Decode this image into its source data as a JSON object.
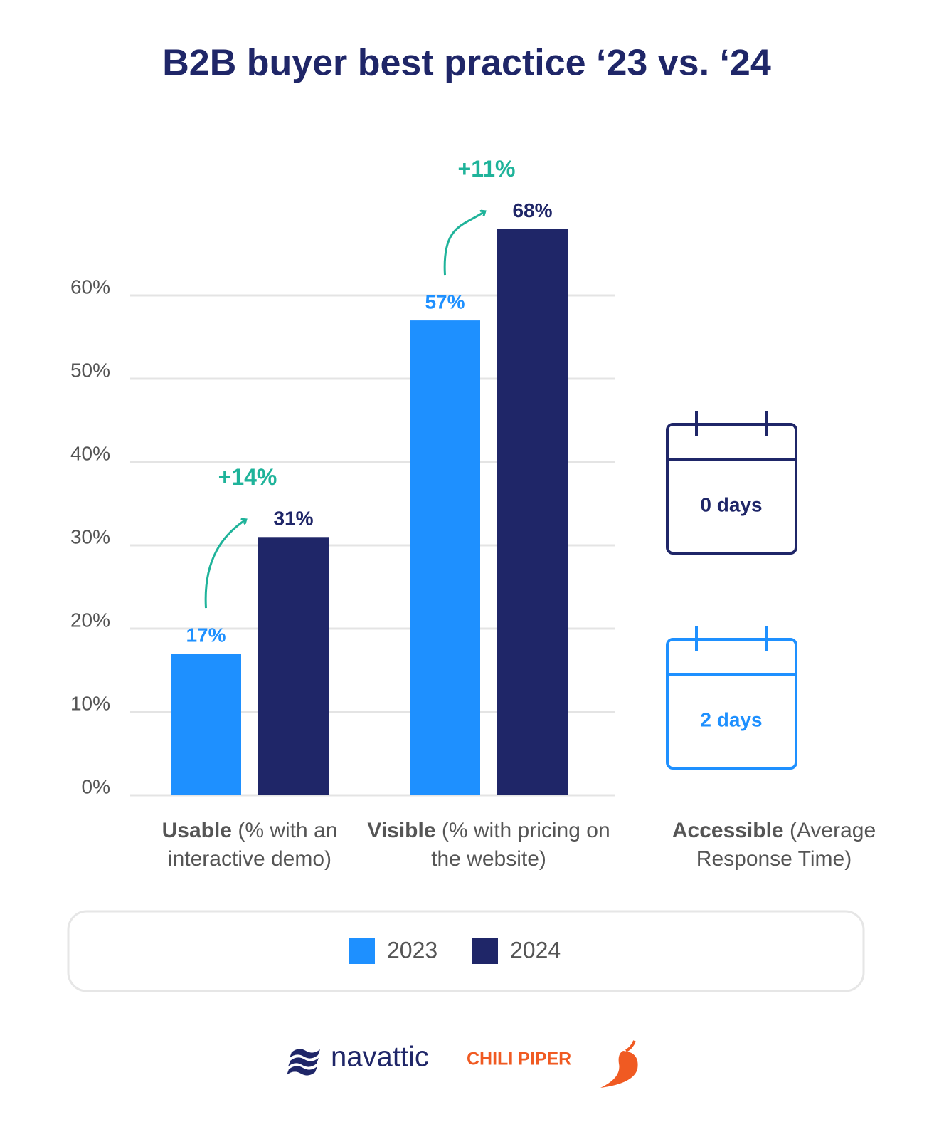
{
  "chart_data": {
    "type": "bar",
    "title": "B2B buyer best practice ‘23 vs. ‘24",
    "categories": [
      "Usable (% with an interactive demo)",
      "Visible (% with pricing on the website)"
    ],
    "series": [
      {
        "name": "2023",
        "color": "#1e90ff",
        "values": [
          17,
          57
        ],
        "value_labels": [
          "17%",
          "57%"
        ]
      },
      {
        "name": "2024",
        "color": "#1f2668",
        "values": [
          31,
          68
        ],
        "value_labels": [
          "31%",
          "68%"
        ]
      }
    ],
    "change_labels": [
      "+14%",
      "+11%"
    ],
    "change_color": "#1fb39a",
    "ylim": [
      0,
      70
    ],
    "yticks": [
      {
        "value": 0,
        "label": "0%"
      },
      {
        "value": 10,
        "label": "10%"
      },
      {
        "value": 20,
        "label": "20%"
      },
      {
        "value": 30,
        "label": "30%"
      },
      {
        "value": 40,
        "label": "40%"
      },
      {
        "value": 50,
        "label": "50%"
      },
      {
        "value": 60,
        "label": "60%"
      }
    ],
    "grid": true,
    "response_time": {
      "category": "Accessible (Average Response Time)",
      "items": [
        {
          "label": "0 days",
          "color": "#1f2668"
        },
        {
          "label": "2 days",
          "color": "#1e90ff"
        }
      ]
    },
    "logos": [
      "navattic",
      "CHILI PIPER"
    ]
  }
}
